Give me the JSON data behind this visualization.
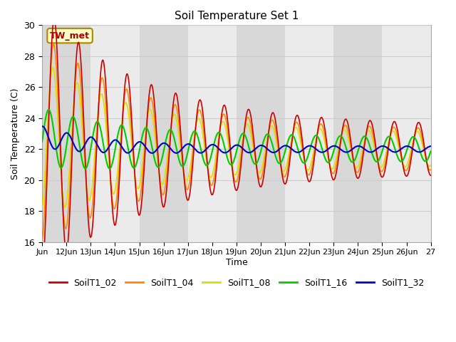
{
  "title": "Soil Temperature Set 1",
  "xlabel": "Time",
  "ylabel": "Soil Temperature (C)",
  "ylim": [
    16,
    30
  ],
  "xlim_start": 0,
  "xlim_end": 16,
  "x_tick_labels": [
    "Jun",
    "12Jun",
    "13Jun",
    "14Jun",
    "15Jun",
    "16Jun",
    "17Jun",
    "18Jun",
    "19Jun",
    "20Jun",
    "21Jun",
    "22Jun",
    "23Jun",
    "24Jun",
    "25Jun",
    "26Jun",
    "27"
  ],
  "annotation_text": "TW_met",
  "annotation_color": "#aa0000",
  "annotation_bg": "#ffffcc",
  "annotation_border": "#aa8800",
  "series": {
    "SoilT1_02": {
      "color": "#cc0000",
      "linewidth": 1.2
    },
    "SoilT1_04": {
      "color": "#ff8800",
      "linewidth": 1.2
    },
    "SoilT1_08": {
      "color": "#dddd00",
      "linewidth": 1.2
    },
    "SoilT1_16": {
      "color": "#00cc00",
      "linewidth": 1.5
    },
    "SoilT1_32": {
      "color": "#0000cc",
      "linewidth": 1.5
    }
  },
  "grid_color": "#cccccc",
  "plot_bg_color": "#ebebeb",
  "plot_bg_alt": "#d8d8d8"
}
